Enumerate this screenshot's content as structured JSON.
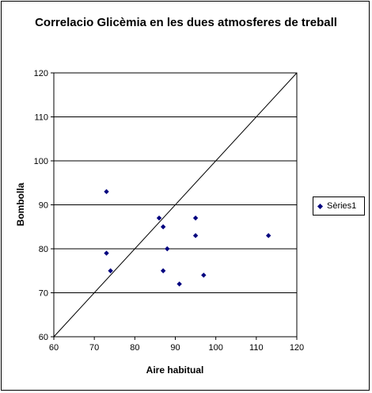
{
  "chart_data": {
    "type": "scatter",
    "title": "Correlacio Glicèmia en les dues atmosferes de treball",
    "xlabel": "Aire habitual",
    "ylabel": "Bombolla",
    "xlim": [
      60,
      120
    ],
    "ylim": [
      60,
      120
    ],
    "xticks": [
      "60",
      "70",
      "80",
      "90",
      "100",
      "110",
      "120"
    ],
    "yticks": [
      "60",
      "70",
      "80",
      "90",
      "100",
      "110",
      "120"
    ],
    "grid": "horizontal",
    "legend_position": "right",
    "reference_line": {
      "from": [
        60,
        60
      ],
      "to": [
        120,
        120
      ]
    },
    "series": [
      {
        "name": "Sèries1",
        "color": "#00007f",
        "marker": "diamond",
        "points": [
          [
            73,
            93
          ],
          [
            73,
            79
          ],
          [
            74,
            75
          ],
          [
            86,
            87
          ],
          [
            87,
            85
          ],
          [
            87,
            75
          ],
          [
            88,
            80
          ],
          [
            91,
            72
          ],
          [
            95,
            87
          ],
          [
            95,
            83
          ],
          [
            97,
            74
          ],
          [
            113,
            83
          ]
        ]
      }
    ]
  }
}
